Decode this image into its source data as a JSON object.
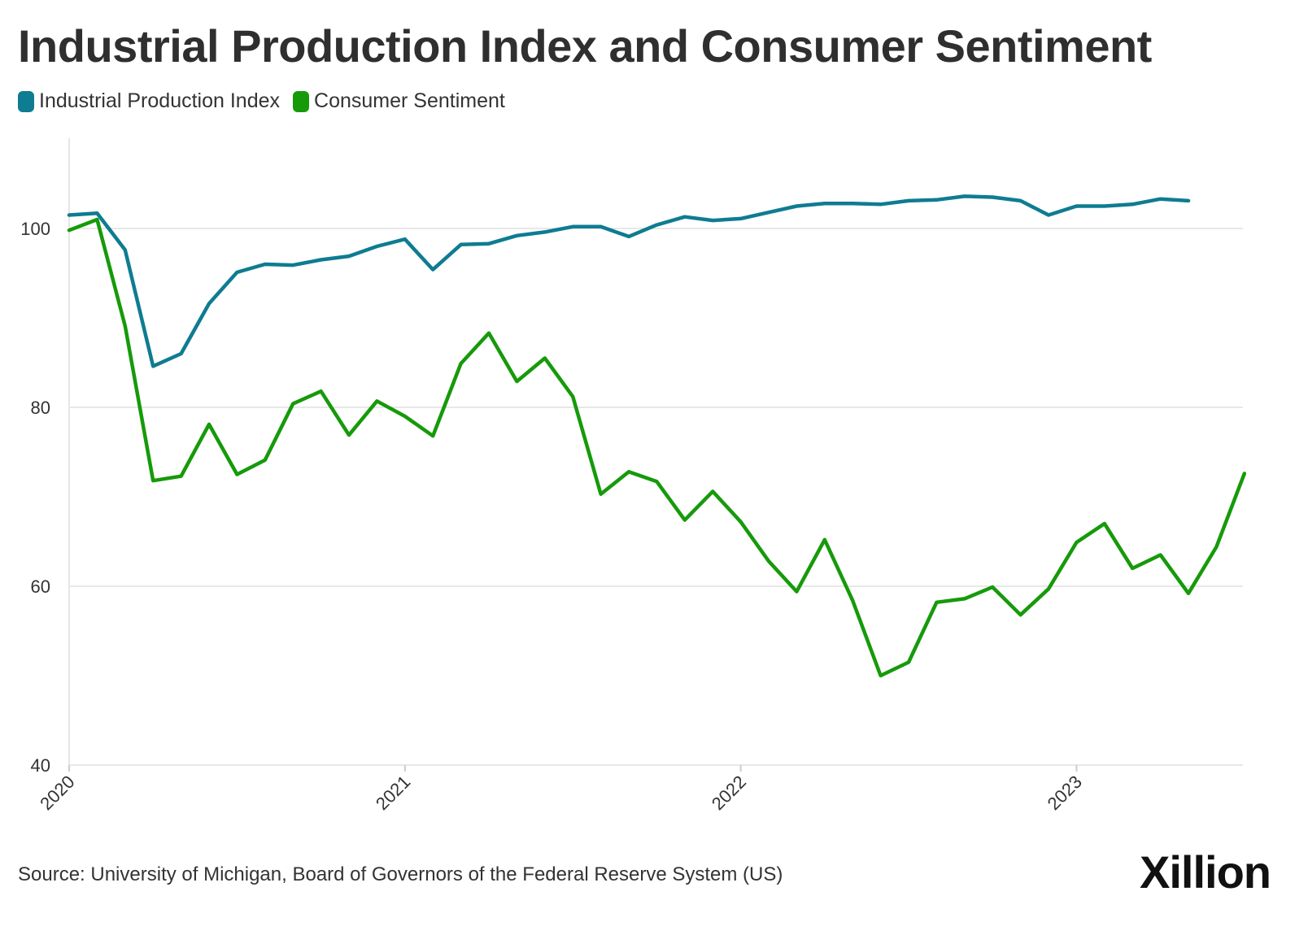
{
  "title": "Industrial Production Index and Consumer Sentiment",
  "legend": [
    {
      "label": "Industrial Production Index",
      "color": "#0e7c91"
    },
    {
      "label": "Consumer Sentiment",
      "color": "#169a0a"
    }
  ],
  "source": "Source: University of Michigan, Board of Governors of the Federal Reserve System (US)",
  "logo": "Xillion",
  "chart_data": {
    "type": "line",
    "title": "Industrial Production Index and Consumer Sentiment",
    "xlabel": "",
    "ylabel": "",
    "x_ticks": [
      "2020",
      "2021",
      "2022",
      "2023"
    ],
    "y_ticks": [
      40,
      60,
      80,
      100
    ],
    "ylim": [
      40,
      110
    ],
    "grid": true,
    "legend_position": "top-left",
    "x": [
      "2020-01",
      "2020-02",
      "2020-03",
      "2020-04",
      "2020-05",
      "2020-06",
      "2020-07",
      "2020-08",
      "2020-09",
      "2020-10",
      "2020-11",
      "2020-12",
      "2021-01",
      "2021-02",
      "2021-03",
      "2021-04",
      "2021-05",
      "2021-06",
      "2021-07",
      "2021-08",
      "2021-09",
      "2021-10",
      "2021-11",
      "2021-12",
      "2022-01",
      "2022-02",
      "2022-03",
      "2022-04",
      "2022-05",
      "2022-06",
      "2022-07",
      "2022-08",
      "2022-09",
      "2022-10",
      "2022-11",
      "2022-12",
      "2023-01",
      "2023-02",
      "2023-03",
      "2023-04",
      "2023-05",
      "2023-06",
      "2023-07"
    ],
    "series": [
      {
        "name": "Industrial Production Index",
        "color": "#0e7c91",
        "values": [
          101.5,
          101.7,
          97.6,
          84.6,
          86.0,
          91.6,
          95.1,
          96.0,
          95.9,
          96.5,
          96.9,
          98.0,
          98.8,
          95.4,
          98.2,
          98.3,
          99.2,
          99.6,
          100.2,
          100.2,
          99.1,
          100.4,
          101.3,
          100.9,
          101.1,
          101.8,
          102.5,
          102.8,
          102.8,
          102.7,
          103.1,
          103.2,
          103.6,
          103.5,
          103.1,
          101.5,
          102.5,
          102.5,
          102.7,
          103.3,
          103.1,
          null,
          null
        ]
      },
      {
        "name": "Consumer Sentiment",
        "color": "#169a0a",
        "values": [
          99.8,
          101.0,
          89.1,
          71.8,
          72.3,
          78.1,
          72.5,
          74.1,
          80.4,
          81.8,
          76.9,
          80.7,
          79.0,
          76.8,
          84.9,
          88.3,
          82.9,
          85.5,
          81.2,
          70.3,
          72.8,
          71.7,
          67.4,
          70.6,
          67.2,
          62.8,
          59.4,
          65.2,
          58.4,
          50.0,
          51.5,
          58.2,
          58.6,
          59.9,
          56.8,
          59.7,
          64.9,
          67.0,
          62.0,
          63.5,
          59.2,
          64.4,
          72.6
        ]
      }
    ]
  }
}
